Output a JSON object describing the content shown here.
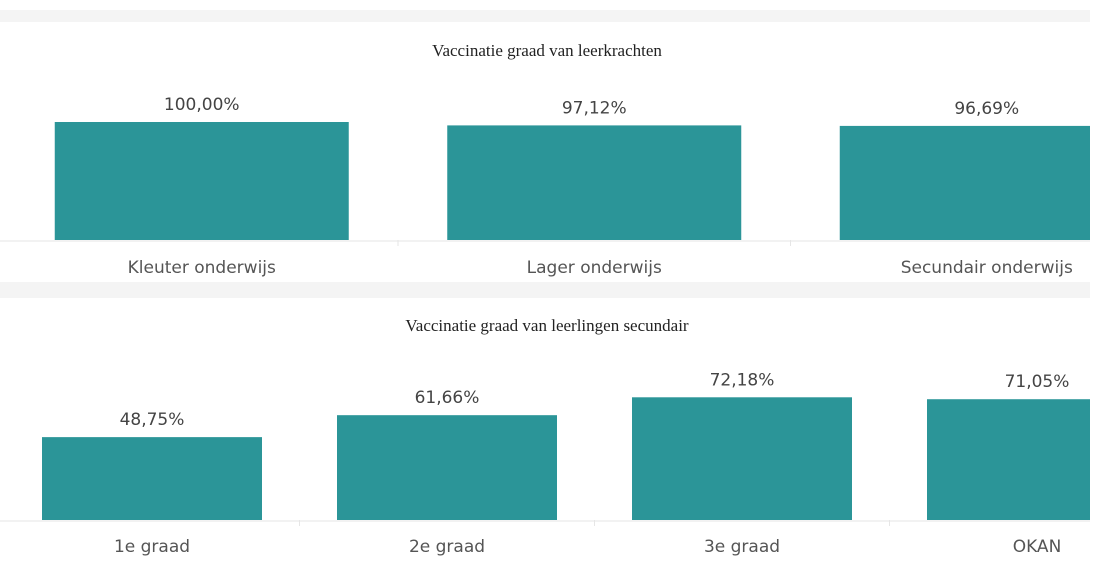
{
  "chart_data": [
    {
      "type": "bar",
      "title": "Vaccinatie graad van leerkrachten",
      "categories": [
        "Kleuter onderwijs",
        "Lager onderwijs",
        "Secundair onderwijs"
      ],
      "values": [
        100,
        97.12,
        96.69
      ],
      "value_labels": [
        "100,00%",
        "97,12%",
        "96,69%"
      ],
      "color": "#2b9598",
      "ylim": [
        0,
        100
      ]
    },
    {
      "type": "bar",
      "title": "Vaccinatie graad van leerlingen secundair",
      "categories": [
        "1e graad",
        "2e graad",
        "3e graad",
        "OKAN"
      ],
      "values": [
        48.75,
        61.66,
        72.18,
        71.05
      ],
      "value_labels": [
        "48,75%",
        "61,66%",
        "72,18%",
        "71,05%"
      ],
      "color": "#2b9598",
      "ylim": [
        0,
        100
      ]
    }
  ]
}
